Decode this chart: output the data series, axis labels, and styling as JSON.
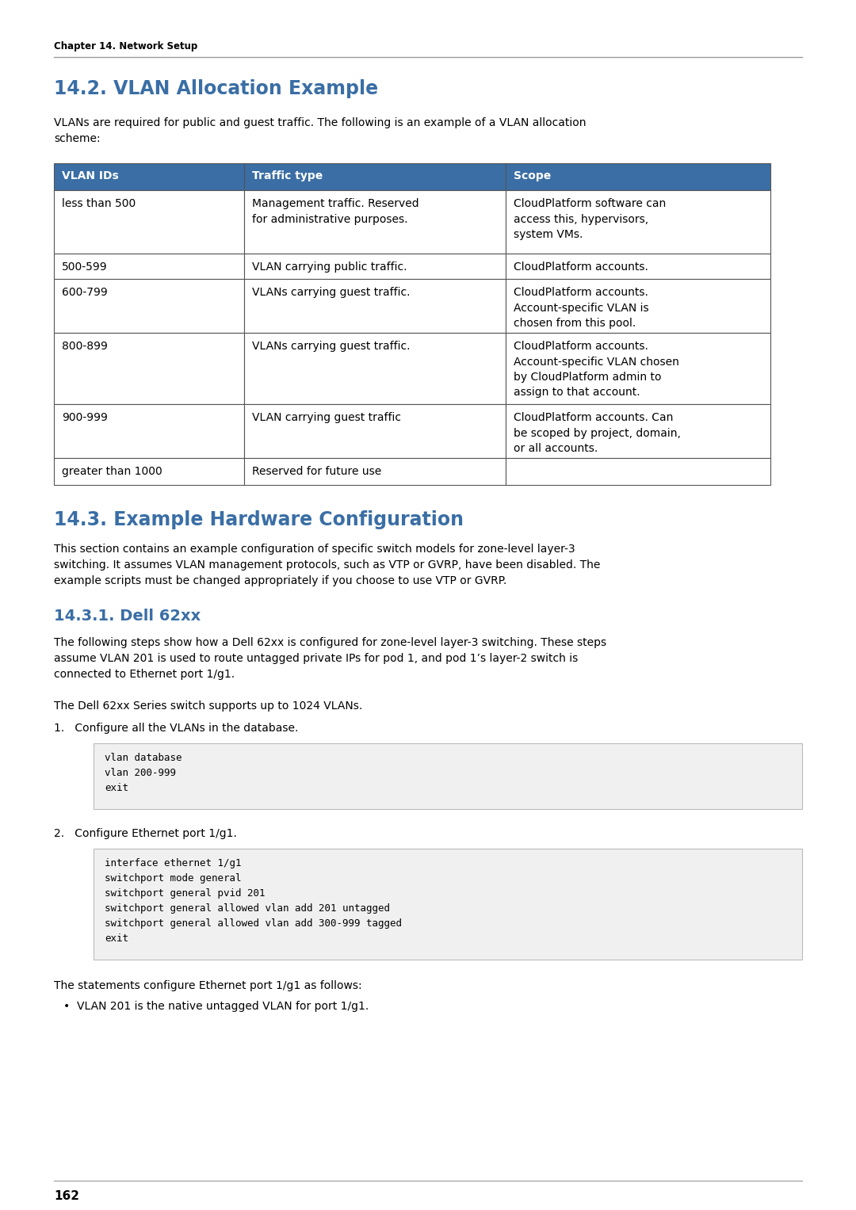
{
  "page_bg": "#ffffff",
  "header_text": "Chapter 14. Network Setup",
  "header_line_color": "#888888",
  "section_title_1": "14.2. VLAN Allocation Example",
  "section_title_color": "#3a6ea5",
  "table_header_bg": "#3a6ea5",
  "table_header_text_color": "#ffffff",
  "table_border_color": "#555555",
  "table_row_bg": "#ffffff",
  "table_headers": [
    "VLAN IDs",
    "Traffic type",
    "Scope"
  ],
  "table_rows": [
    [
      "less than 500",
      "Management traffic. Reserved\nfor administrative purposes.",
      "CloudPlatform software can\naccess this, hypervisors,\nsystem VMs."
    ],
    [
      "500-599",
      "VLAN carrying public traffic.",
      "CloudPlatform accounts."
    ],
    [
      "600-799",
      "VLANs carrying guest traffic.",
      "CloudPlatform accounts.\nAccount-specific VLAN is\nchosen from this pool."
    ],
    [
      "800-899",
      "VLANs carrying guest traffic.",
      "CloudPlatform accounts.\nAccount-specific VLAN chosen\nby CloudPlatform admin to\nassign to that account."
    ],
    [
      "900-999",
      "VLAN carrying guest traffic",
      "CloudPlatform accounts. Can\nbe scoped by project, domain,\nor all accounts."
    ],
    [
      "greater than 1000",
      "Reserved for future use",
      ""
    ]
  ],
  "section_title_2": "14.3. Example Hardware Configuration",
  "section_2_intro_lines": [
    "This section contains an example configuration of specific switch models for zone-level layer-3",
    "switching. It assumes VLAN management protocols, such as VTP or GVRP, have been disabled. The",
    "example scripts must be changed appropriately if you choose to use VTP or GVRP."
  ],
  "subsection_title": "14.3.1. Dell 62xx",
  "subsection_intro_lines": [
    "The following steps show how a Dell 62xx is configured for zone-level layer-3 switching. These steps",
    "assume VLAN 201 is used to route untagged private IPs for pod 1, and pod 1’s layer-2 switch is",
    "connected to Ethernet port 1/g1."
  ],
  "dell_note": "The Dell 62xx Series switch supports up to 1024 VLANs.",
  "step1_label": "1.   Configure all the VLANs in the database.",
  "code_box_1_lines": [
    "vlan database",
    "vlan 200-999",
    "exit"
  ],
  "step2_label": "2.   Configure Ethernet port 1/g1.",
  "code_box_2_lines": [
    "interface ethernet 1/g1",
    "switchport mode general",
    "switchport general pvid 201",
    "switchport general allowed vlan add 201 untagged",
    "switchport general allowed vlan add 300-999 tagged",
    "exit"
  ],
  "after_code_text": "The statements configure Ethernet port 1/g1 as follows:",
  "bullet_text": "•  VLAN 201 is the native untagged VLAN for port 1/g1.",
  "footer_text": "162",
  "code_bg": "#f0f0f0",
  "code_border_color": "#bbbbbb",
  "intro_lines": [
    "VLANs are required for public and guest traffic. The following is an example of a VLAN allocation",
    "scheme:"
  ]
}
